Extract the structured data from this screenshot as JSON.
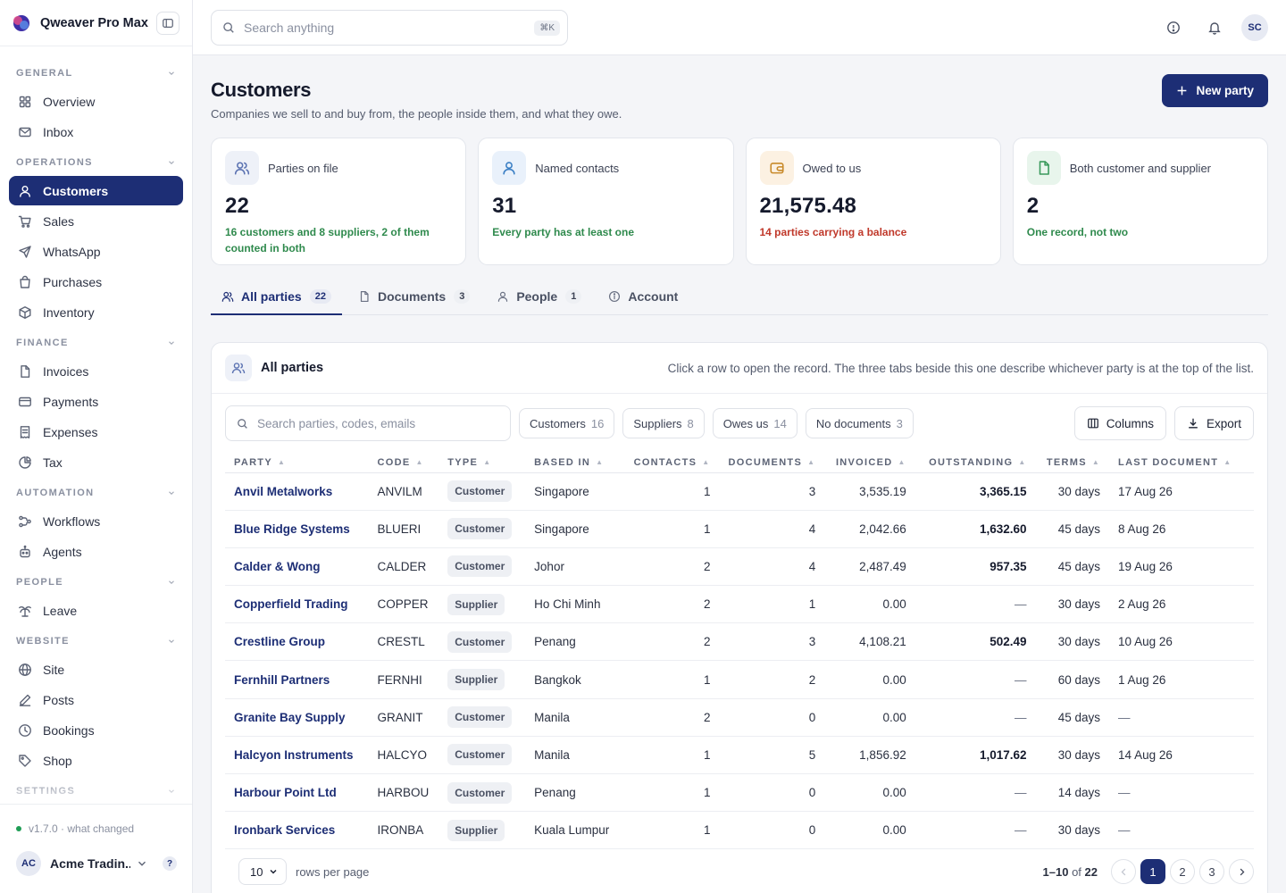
{
  "app": {
    "name": "Qweaver Pro Max",
    "version": "v1.7.0 · what changed",
    "account_initials": "AC",
    "account_name": "Acme Tradin...",
    "help": "?"
  },
  "sidebar": {
    "sections": [
      {
        "label": "GENERAL",
        "items": [
          {
            "label": "Overview",
            "icon": "grid-icon"
          },
          {
            "label": "Inbox",
            "icon": "mail-icon"
          }
        ]
      },
      {
        "label": "OPERATIONS",
        "items": [
          {
            "label": "Customers",
            "icon": "user-icon",
            "active": true
          },
          {
            "label": "Sales",
            "icon": "cart-icon"
          },
          {
            "label": "WhatsApp",
            "icon": "send-icon"
          },
          {
            "label": "Purchases",
            "icon": "bag-icon"
          },
          {
            "label": "Inventory",
            "icon": "box-icon"
          }
        ]
      },
      {
        "label": "FINANCE",
        "items": [
          {
            "label": "Invoices",
            "icon": "file-icon"
          },
          {
            "label": "Payments",
            "icon": "card-icon"
          },
          {
            "label": "Expenses",
            "icon": "receipt-icon"
          },
          {
            "label": "Tax",
            "icon": "pie-icon"
          }
        ]
      },
      {
        "label": "AUTOMATION",
        "items": [
          {
            "label": "Workflows",
            "icon": "workflow-icon"
          },
          {
            "label": "Agents",
            "icon": "bot-icon"
          }
        ]
      },
      {
        "label": "PEOPLE",
        "items": [
          {
            "label": "Leave",
            "icon": "palm-icon"
          }
        ]
      },
      {
        "label": "WEBSITE",
        "items": [
          {
            "label": "Site",
            "icon": "globe-icon"
          },
          {
            "label": "Posts",
            "icon": "pen-icon"
          },
          {
            "label": "Bookings",
            "icon": "clock-icon"
          },
          {
            "label": "Shop",
            "icon": "tag-icon"
          }
        ]
      },
      {
        "label": "SETTINGS",
        "items": []
      }
    ]
  },
  "topbar": {
    "search_placeholder": "Search anything",
    "shortcut": "⌘K",
    "user_initials": "SC"
  },
  "page": {
    "title": "Customers",
    "subtitle": "Companies we sell to and buy from, the people inside them, and what they owe.",
    "new_button": "New party"
  },
  "stats": [
    {
      "label": "Parties on file",
      "value": "22",
      "note": "16 customers and 8 suppliers, 2 of them counted in both",
      "tone": "green",
      "icon": "users-icon",
      "icon_bg": "#eef1f8",
      "icon_color": "#5c73b2"
    },
    {
      "label": "Named contacts",
      "value": "31",
      "note": "Every party has at least one",
      "tone": "green",
      "icon": "user-icon",
      "icon_bg": "#e9f1fb",
      "icon_color": "#3b7fc4"
    },
    {
      "label": "Owed to us",
      "value": "21,575.48",
      "note": "14 parties carrying a balance",
      "tone": "red",
      "icon": "wallet-icon",
      "icon_bg": "#fcf1e2",
      "icon_color": "#c88a2a"
    },
    {
      "label": "Both customer and supplier",
      "value": "2",
      "note": "One record, not two",
      "tone": "green",
      "icon": "file-icon",
      "icon_bg": "#e8f5ec",
      "icon_color": "#3a9a5c"
    }
  ],
  "tabs": [
    {
      "label": "All parties",
      "count": "22",
      "icon": "users-icon",
      "active": true
    },
    {
      "label": "Documents",
      "count": "3",
      "icon": "file-icon"
    },
    {
      "label": "People",
      "count": "1",
      "icon": "user-icon"
    },
    {
      "label": "Account",
      "count": "",
      "icon": "info-icon"
    }
  ],
  "panel": {
    "title": "All parties",
    "hint": "Click a row to open the record. The three tabs beside this one describe whichever party is at the top of the list.",
    "search_placeholder": "Search parties, codes, emails",
    "filters": [
      {
        "label": "Customers",
        "count": "16"
      },
      {
        "label": "Suppliers",
        "count": "8"
      },
      {
        "label": "Owes us",
        "count": "14"
      },
      {
        "label": "No documents",
        "count": "3"
      }
    ],
    "columns_button": "Columns",
    "export_button": "Export"
  },
  "table": {
    "headers": [
      "PARTY",
      "CODE",
      "TYPE",
      "BASED IN",
      "CONTACTS",
      "DOCUMENTS",
      "INVOICED",
      "OUTSTANDING",
      "TERMS",
      "LAST DOCUMENT"
    ],
    "rows": [
      [
        "Anvil Metalworks",
        "ANVILM",
        "Customer",
        "Singapore",
        "1",
        "3",
        "3,535.19",
        "3,365.15",
        "30 days",
        "17 Aug 26"
      ],
      [
        "Blue Ridge Systems",
        "BLUERI",
        "Customer",
        "Singapore",
        "1",
        "4",
        "2,042.66",
        "1,632.60",
        "45 days",
        "8 Aug 26"
      ],
      [
        "Calder & Wong",
        "CALDER",
        "Customer",
        "Johor",
        "2",
        "4",
        "2,487.49",
        "957.35",
        "45 days",
        "19 Aug 26"
      ],
      [
        "Copperfield Trading",
        "COPPER",
        "Supplier",
        "Ho Chi Minh",
        "2",
        "1",
        "0.00",
        "—",
        "30 days",
        "2 Aug 26"
      ],
      [
        "Crestline Group",
        "CRESTL",
        "Customer",
        "Penang",
        "2",
        "3",
        "4,108.21",
        "502.49",
        "30 days",
        "10 Aug 26"
      ],
      [
        "Fernhill Partners",
        "FERNHI",
        "Supplier",
        "Bangkok",
        "1",
        "2",
        "0.00",
        "—",
        "60 days",
        "1 Aug 26"
      ],
      [
        "Granite Bay Supply",
        "GRANIT",
        "Customer",
        "Manila",
        "2",
        "0",
        "0.00",
        "—",
        "45 days",
        "—"
      ],
      [
        "Halcyon Instruments",
        "HALCYO",
        "Customer",
        "Manila",
        "1",
        "5",
        "1,856.92",
        "1,017.62",
        "30 days",
        "14 Aug 26"
      ],
      [
        "Harbour Point Ltd",
        "HARBOU",
        "Customer",
        "Penang",
        "1",
        "0",
        "0.00",
        "—",
        "14 days",
        "—"
      ],
      [
        "Ironbark Services",
        "IRONBA",
        "Supplier",
        "Kuala Lumpur",
        "1",
        "0",
        "0.00",
        "—",
        "30 days",
        "—"
      ]
    ]
  },
  "pagination": {
    "rows_per_page": "10",
    "rows_per_page_label": "rows per page",
    "range": "1–10",
    "of_label": "of",
    "total": "22",
    "pages": [
      "1",
      "2",
      "3"
    ],
    "current": "1"
  }
}
